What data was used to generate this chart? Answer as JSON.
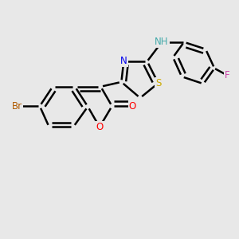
{
  "background_color": "#e8e8e8",
  "bond_color": "#000000",
  "bond_width": 1.8,
  "figsize": [
    3.0,
    3.0
  ],
  "dpi": 100,
  "colors": {
    "Br": "#b05a00",
    "O": "#ff0000",
    "N": "#0000ee",
    "S": "#ccaa00",
    "F": "#cc44aa",
    "NH": "#44aaaa",
    "C": "#000000"
  }
}
